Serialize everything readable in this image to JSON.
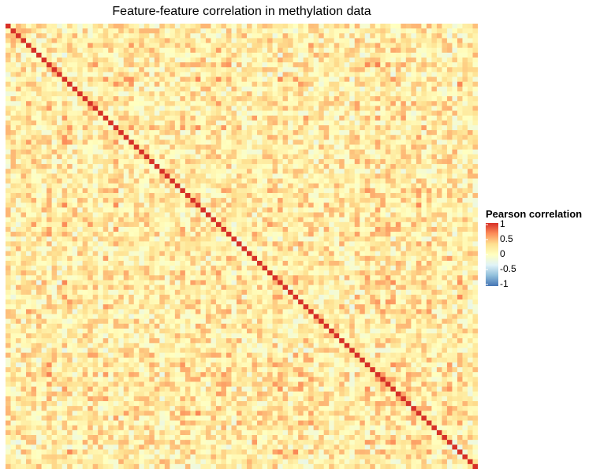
{
  "chart_data": {
    "type": "heatmap",
    "title": "Feature-feature correlation in methylation data",
    "n_features": 92,
    "matrix_note": "symmetric correlation matrix; diagonal = 1; off-diagonal values vary between about -0.8 and 0.8",
    "diagonal_value": 1,
    "value_range": [
      -1,
      1
    ],
    "xlabel": "",
    "ylabel": "",
    "legend": {
      "title": "Pearson correlation",
      "ticks": [
        1,
        0.5,
        0,
        -0.5,
        -1
      ],
      "tick_labels": [
        "1",
        "0.5",
        "0",
        "-0.5",
        "-1"
      ],
      "position": "right"
    },
    "colorscale": [
      "#4575b4",
      "#91bfdb",
      "#e0f3f8",
      "#ffffbf",
      "#fee090",
      "#fc8d59",
      "#d73027"
    ],
    "random_seed": 20240527
  }
}
